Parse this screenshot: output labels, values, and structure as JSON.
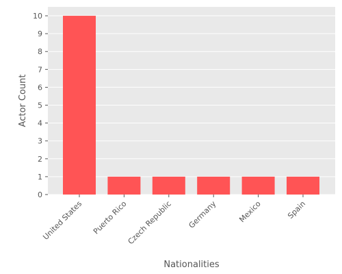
{
  "chart_data": {
    "type": "bar",
    "title": "",
    "xlabel": "Nationalities",
    "ylabel": "Actor Count",
    "categories": [
      "United States",
      "Puerto Rico",
      "Czech Republic",
      "Germany",
      "Mexico",
      "Spain"
    ],
    "values": [
      10,
      1,
      1,
      1,
      1,
      1
    ],
    "ylim": [
      0,
      10.5
    ],
    "yticks": [
      0,
      1,
      2,
      3,
      4,
      5,
      6,
      7,
      8,
      9,
      10
    ],
    "grid": true,
    "bar_color": "#ff5455",
    "plot_background": "#e9e9e9",
    "grid_color": "#ffffff"
  }
}
